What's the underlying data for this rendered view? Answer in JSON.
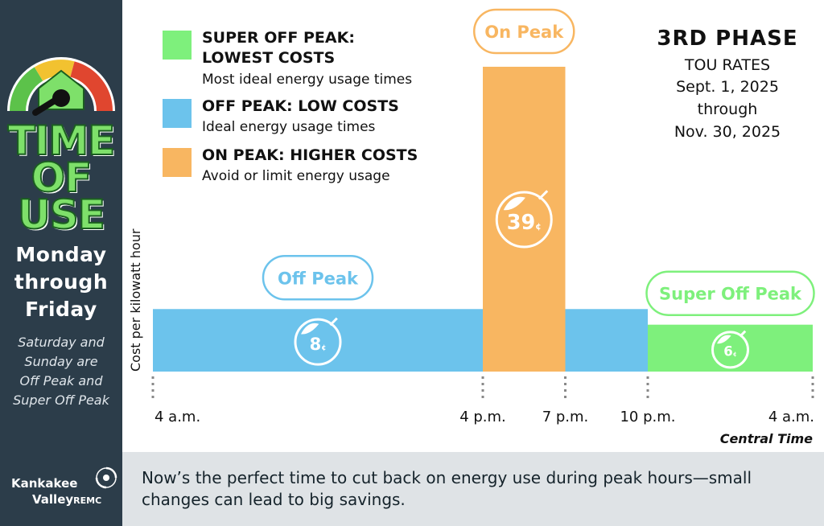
{
  "sidebar": {
    "tou_words": [
      "TIME",
      "OF",
      "USE"
    ],
    "days_lines": [
      "Monday",
      "through",
      "Friday"
    ],
    "weekend_lines": [
      "Saturday and",
      "Sunday are",
      "Off Peak and",
      "Super Off Peak"
    ],
    "logo": {
      "name1": "Kankakee",
      "name2": "Valley",
      "suffix": "REMC"
    }
  },
  "legend": [
    {
      "heading_lines": [
        "SUPER OFF PEAK:",
        "LOWEST COSTS"
      ],
      "desc": "Most ideal energy usage times",
      "color": "#7ef07c"
    },
    {
      "heading_lines": [
        "OFF PEAK: LOW COSTS"
      ],
      "desc": "Ideal energy usage times",
      "color": "#6cc3ec"
    },
    {
      "heading_lines": [
        "ON PEAK:  HIGHER COSTS"
      ],
      "desc": "Avoid or limit energy usage",
      "color": "#f8b661"
    }
  ],
  "phase": {
    "title": "3RD PHASE",
    "lines": [
      "TOU RATES",
      "Sept. 1, 2025",
      "through",
      "Nov. 30, 2025"
    ]
  },
  "footer": {
    "message": "Now’s the perfect time to cut back on energy use during peak hours—small changes can lead to big savings."
  },
  "chart_data": {
    "type": "bar",
    "title": "",
    "ylabel": "Cost per kilowatt hour",
    "xlabel": "Central Time",
    "unit": "¢",
    "x_ticks": [
      "4 a.m.",
      "4 p.m.",
      "7 p.m.",
      "10 p.m.",
      "4 a.m."
    ],
    "x_tick_hours": [
      4,
      16,
      19,
      22,
      28
    ],
    "series": [
      {
        "name": "Off Peak",
        "label": "Off Peak",
        "start": 4,
        "end": 16,
        "value": 8,
        "value_label": "8",
        "color": "#6cc3ec",
        "stroke": "#6cc3ec"
      },
      {
        "name": "On Peak",
        "label": "On Peak",
        "start": 16,
        "end": 19,
        "value": 39,
        "value_label": "39",
        "color": "#f8b661",
        "stroke": "#f8b661"
      },
      {
        "name": "Off Peak",
        "label": "",
        "start": 19,
        "end": 22,
        "value": 8,
        "value_label": "",
        "color": "#6cc3ec",
        "stroke": "#6cc3ec"
      },
      {
        "name": "Super Off Peak",
        "label": "Super Off Peak",
        "start": 22,
        "end": 28,
        "value": 6,
        "value_label": "6",
        "color": "#7ef07c",
        "stroke": "#7ef07c"
      }
    ],
    "ylim": [
      0,
      39
    ]
  }
}
